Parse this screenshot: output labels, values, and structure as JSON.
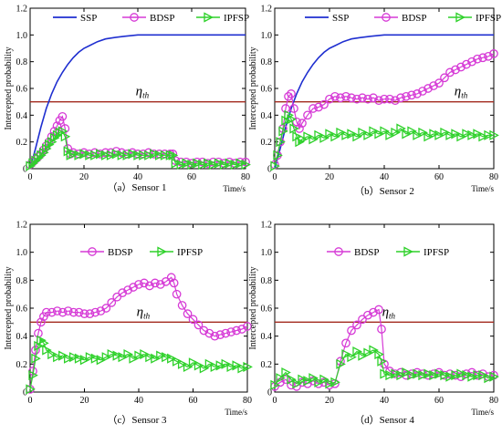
{
  "colors": {
    "SSP": "#1f2fd0",
    "BDSP": "#d63ad6",
    "IPFSP": "#2ed12a",
    "threshold": "#a32a1e"
  },
  "threshold_label": "η",
  "threshold_sub": "th",
  "chart_data": [
    {
      "type": "line",
      "caption": "（a）Sensor 1",
      "ylabel": "Intercepted probability",
      "xunit": "Time/s",
      "xlim": [
        0,
        80
      ],
      "ylim": [
        0,
        1.2
      ],
      "xticks": [
        "0",
        "20",
        "40",
        "60",
        "80"
      ],
      "yticks": [
        "0",
        "0.2",
        "0.4",
        "0.6",
        "0.8",
        "1.0",
        "1.2"
      ],
      "threshold": 0.5,
      "legend": [
        "SSP",
        "BDSP",
        "IPFSP"
      ],
      "series": [
        {
          "name": "SSP",
          "x": [
            0,
            2,
            4,
            6,
            8,
            10,
            12,
            14,
            16,
            18,
            20,
            22,
            25,
            28,
            31,
            35,
            40,
            45,
            50,
            55,
            60,
            70,
            80
          ],
          "y": [
            0,
            0.15,
            0.31,
            0.45,
            0.56,
            0.65,
            0.72,
            0.78,
            0.83,
            0.87,
            0.9,
            0.92,
            0.95,
            0.97,
            0.98,
            0.99,
            1.0,
            1.0,
            1.0,
            1.0,
            1.0,
            1.0,
            1.0
          ]
        },
        {
          "name": "BDSP",
          "x": [
            0,
            1,
            2,
            3,
            4,
            5,
            6,
            7,
            8,
            9,
            10,
            11,
            12,
            13,
            14,
            15,
            16,
            18,
            20,
            22,
            24,
            26,
            28,
            30,
            32,
            34,
            36,
            38,
            40,
            42,
            44,
            46,
            48,
            50,
            52,
            53,
            54,
            56,
            58,
            60,
            62,
            64,
            66,
            68,
            70,
            72,
            74,
            76,
            78,
            80
          ],
          "y": [
            0.03,
            0.05,
            0.07,
            0.09,
            0.11,
            0.14,
            0.17,
            0.2,
            0.24,
            0.28,
            0.32,
            0.36,
            0.39,
            0.3,
            0.15,
            0.11,
            0.12,
            0.11,
            0.12,
            0.11,
            0.12,
            0.11,
            0.12,
            0.12,
            0.13,
            0.12,
            0.11,
            0.12,
            0.11,
            0.11,
            0.12,
            0.11,
            0.11,
            0.11,
            0.11,
            0.11,
            0.06,
            0.05,
            0.05,
            0.04,
            0.05,
            0.05,
            0.04,
            0.05,
            0.05,
            0.04,
            0.05,
            0.04,
            0.05,
            0.05
          ]
        },
        {
          "name": "IPFSP",
          "x": [
            0,
            1,
            2,
            3,
            4,
            5,
            6,
            7,
            8,
            9,
            10,
            11,
            12,
            13,
            14,
            15,
            16,
            18,
            20,
            22,
            24,
            26,
            28,
            30,
            32,
            34,
            36,
            38,
            40,
            42,
            44,
            46,
            48,
            50,
            52,
            53,
            54,
            56,
            58,
            60,
            62,
            64,
            66,
            68,
            70,
            72,
            74,
            76,
            78,
            80
          ],
          "y": [
            0.02,
            0.04,
            0.06,
            0.08,
            0.1,
            0.12,
            0.15,
            0.18,
            0.2,
            0.23,
            0.25,
            0.27,
            0.28,
            0.24,
            0.13,
            0.1,
            0.11,
            0.1,
            0.11,
            0.1,
            0.1,
            0.11,
            0.1,
            0.1,
            0.11,
            0.1,
            0.1,
            0.11,
            0.1,
            0.1,
            0.1,
            0.11,
            0.1,
            0.1,
            0.1,
            0.1,
            0.04,
            0.03,
            0.04,
            0.03,
            0.04,
            0.03,
            0.04,
            0.03,
            0.04,
            0.03,
            0.04,
            0.03,
            0.04,
            0.03
          ]
        }
      ]
    },
    {
      "type": "line",
      "caption": "（b）Sensor 2",
      "ylabel": "Intercepted probability",
      "xunit": "Time/s",
      "xlim": [
        0,
        80
      ],
      "ylim": [
        0,
        1.2
      ],
      "xticks": [
        "0",
        "20",
        "40",
        "60",
        "80"
      ],
      "yticks": [
        "0",
        "0.2",
        "0.4",
        "0.6",
        "0.8",
        "1.0",
        "1.2"
      ],
      "threshold": 0.5,
      "legend": [
        "SSP",
        "BDSP",
        "IPFSP"
      ],
      "series": [
        {
          "name": "SSP",
          "x": [
            0,
            2,
            4,
            6,
            8,
            10,
            12,
            14,
            16,
            18,
            20,
            22,
            25,
            28,
            31,
            35,
            40,
            45,
            50,
            55,
            60,
            70,
            80
          ],
          "y": [
            0,
            0.15,
            0.31,
            0.45,
            0.56,
            0.65,
            0.72,
            0.78,
            0.83,
            0.87,
            0.9,
            0.92,
            0.95,
            0.97,
            0.98,
            0.99,
            1.0,
            1.0,
            1.0,
            1.0,
            1.0,
            1.0,
            1.0
          ]
        },
        {
          "name": "BDSP",
          "x": [
            0,
            1,
            2,
            3,
            4,
            5,
            6,
            7,
            8,
            9,
            10,
            12,
            14,
            16,
            18,
            20,
            22,
            24,
            26,
            28,
            30,
            32,
            34,
            36,
            38,
            40,
            42,
            44,
            46,
            48,
            50,
            52,
            54,
            56,
            58,
            60,
            62,
            64,
            66,
            68,
            70,
            72,
            74,
            76,
            78,
            80
          ],
          "y": [
            0.03,
            0.1,
            0.2,
            0.3,
            0.45,
            0.54,
            0.56,
            0.45,
            0.35,
            0.3,
            0.34,
            0.4,
            0.45,
            0.46,
            0.48,
            0.52,
            0.54,
            0.53,
            0.54,
            0.53,
            0.52,
            0.53,
            0.52,
            0.53,
            0.51,
            0.52,
            0.52,
            0.51,
            0.53,
            0.54,
            0.55,
            0.56,
            0.58,
            0.6,
            0.62,
            0.64,
            0.68,
            0.72,
            0.74,
            0.76,
            0.78,
            0.8,
            0.82,
            0.83,
            0.84,
            0.86
          ]
        },
        {
          "name": "IPFSP",
          "x": [
            0,
            1,
            2,
            3,
            4,
            5,
            6,
            7,
            8,
            9,
            10,
            12,
            14,
            16,
            18,
            20,
            22,
            24,
            26,
            28,
            30,
            32,
            34,
            36,
            38,
            40,
            42,
            44,
            46,
            48,
            50,
            52,
            54,
            56,
            58,
            60,
            62,
            64,
            66,
            68,
            70,
            72,
            74,
            76,
            78,
            80
          ],
          "y": [
            0.02,
            0.1,
            0.2,
            0.28,
            0.36,
            0.4,
            0.37,
            0.3,
            0.24,
            0.2,
            0.22,
            0.24,
            0.22,
            0.25,
            0.23,
            0.26,
            0.24,
            0.27,
            0.25,
            0.26,
            0.24,
            0.27,
            0.25,
            0.28,
            0.26,
            0.28,
            0.25,
            0.27,
            0.3,
            0.26,
            0.28,
            0.25,
            0.27,
            0.24,
            0.26,
            0.25,
            0.27,
            0.25,
            0.26,
            0.24,
            0.26,
            0.25,
            0.26,
            0.24,
            0.25,
            0.25
          ]
        }
      ]
    },
    {
      "type": "line",
      "caption": "（c）Sensor 3",
      "ylabel": "Intercepted probability",
      "xunit": "Time/s",
      "xlim": [
        0,
        80
      ],
      "ylim": [
        0,
        1.2
      ],
      "xticks": [
        "0",
        "20",
        "40",
        "60",
        "80"
      ],
      "yticks": [
        "0",
        "0.2",
        "0.4",
        "0.6",
        "0.8",
        "1.0",
        "1.2"
      ],
      "threshold": 0.5,
      "legend": [
        "BDSP",
        "IPFSP"
      ],
      "series": [
        {
          "name": "BDSP",
          "x": [
            0,
            1,
            2,
            3,
            4,
            5,
            6,
            8,
            10,
            12,
            14,
            16,
            18,
            20,
            22,
            24,
            26,
            28,
            30,
            32,
            34,
            36,
            38,
            40,
            42,
            44,
            46,
            48,
            50,
            52,
            53,
            54,
            56,
            58,
            60,
            62,
            64,
            66,
            68,
            70,
            72,
            74,
            76,
            78,
            80
          ],
          "y": [
            0.02,
            0.15,
            0.3,
            0.42,
            0.5,
            0.54,
            0.57,
            0.57,
            0.58,
            0.57,
            0.58,
            0.57,
            0.57,
            0.56,
            0.56,
            0.57,
            0.58,
            0.6,
            0.64,
            0.68,
            0.71,
            0.73,
            0.75,
            0.77,
            0.78,
            0.76,
            0.78,
            0.77,
            0.79,
            0.82,
            0.78,
            0.7,
            0.62,
            0.56,
            0.52,
            0.48,
            0.44,
            0.42,
            0.4,
            0.41,
            0.42,
            0.43,
            0.44,
            0.45,
            0.47
          ]
        },
        {
          "name": "IPFSP",
          "x": [
            0,
            1,
            2,
            3,
            4,
            5,
            6,
            8,
            10,
            12,
            14,
            16,
            18,
            20,
            22,
            24,
            26,
            28,
            30,
            32,
            34,
            36,
            38,
            40,
            42,
            44,
            46,
            48,
            50,
            52,
            54,
            56,
            58,
            60,
            62,
            64,
            66,
            68,
            70,
            72,
            74,
            76,
            78,
            80
          ],
          "y": [
            0.02,
            0.12,
            0.24,
            0.33,
            0.37,
            0.35,
            0.3,
            0.27,
            0.25,
            0.26,
            0.24,
            0.25,
            0.24,
            0.23,
            0.25,
            0.24,
            0.23,
            0.25,
            0.27,
            0.26,
            0.25,
            0.27,
            0.24,
            0.26,
            0.27,
            0.25,
            0.24,
            0.26,
            0.25,
            0.24,
            0.22,
            0.2,
            0.18,
            0.21,
            0.19,
            0.17,
            0.2,
            0.18,
            0.19,
            0.2,
            0.18,
            0.19,
            0.17,
            0.18
          ]
        }
      ]
    },
    {
      "type": "line",
      "caption": "（d）Sensor 4",
      "ylabel": "Intercepted probability",
      "xunit": "Time/s",
      "xlim": [
        0,
        80
      ],
      "ylim": [
        0,
        1.2
      ],
      "xticks": [
        "0",
        "20",
        "40",
        "60",
        "80"
      ],
      "yticks": [
        "0",
        "0.2",
        "0.4",
        "0.6",
        "0.8",
        "1.0",
        "1.2"
      ],
      "threshold": 0.5,
      "legend": [
        "BDSP",
        "IPFSP"
      ],
      "series": [
        {
          "name": "BDSP",
          "x": [
            0,
            2,
            4,
            6,
            8,
            10,
            12,
            14,
            16,
            18,
            20,
            22,
            24,
            26,
            28,
            30,
            32,
            34,
            36,
            38,
            39,
            40,
            42,
            44,
            46,
            48,
            50,
            52,
            54,
            56,
            58,
            60,
            62,
            64,
            66,
            68,
            70,
            72,
            74,
            76,
            78,
            80
          ],
          "y": [
            0.04,
            0.07,
            0.09,
            0.05,
            0.04,
            0.07,
            0.06,
            0.08,
            0.06,
            0.07,
            0.05,
            0.06,
            0.22,
            0.35,
            0.44,
            0.48,
            0.52,
            0.55,
            0.57,
            0.59,
            0.45,
            0.2,
            0.15,
            0.13,
            0.14,
            0.12,
            0.13,
            0.14,
            0.13,
            0.12,
            0.13,
            0.14,
            0.12,
            0.13,
            0.12,
            0.11,
            0.13,
            0.14,
            0.12,
            0.13,
            0.11,
            0.12
          ]
        },
        {
          "name": "IPFSP",
          "x": [
            0,
            2,
            4,
            6,
            8,
            10,
            12,
            14,
            16,
            18,
            20,
            22,
            24,
            26,
            28,
            30,
            32,
            34,
            36,
            38,
            39,
            40,
            42,
            44,
            46,
            48,
            50,
            52,
            54,
            56,
            58,
            60,
            62,
            64,
            66,
            68,
            70,
            72,
            74,
            76,
            78,
            80
          ],
          "y": [
            0.05,
            0.1,
            0.14,
            0.09,
            0.06,
            0.09,
            0.08,
            0.1,
            0.07,
            0.09,
            0.06,
            0.07,
            0.2,
            0.27,
            0.25,
            0.29,
            0.26,
            0.28,
            0.3,
            0.27,
            0.22,
            0.13,
            0.12,
            0.13,
            0.12,
            0.14,
            0.12,
            0.13,
            0.12,
            0.13,
            0.12,
            0.13,
            0.12,
            0.11,
            0.12,
            0.13,
            0.12,
            0.11,
            0.12,
            0.12,
            0.1,
            0.11
          ]
        }
      ]
    }
  ]
}
